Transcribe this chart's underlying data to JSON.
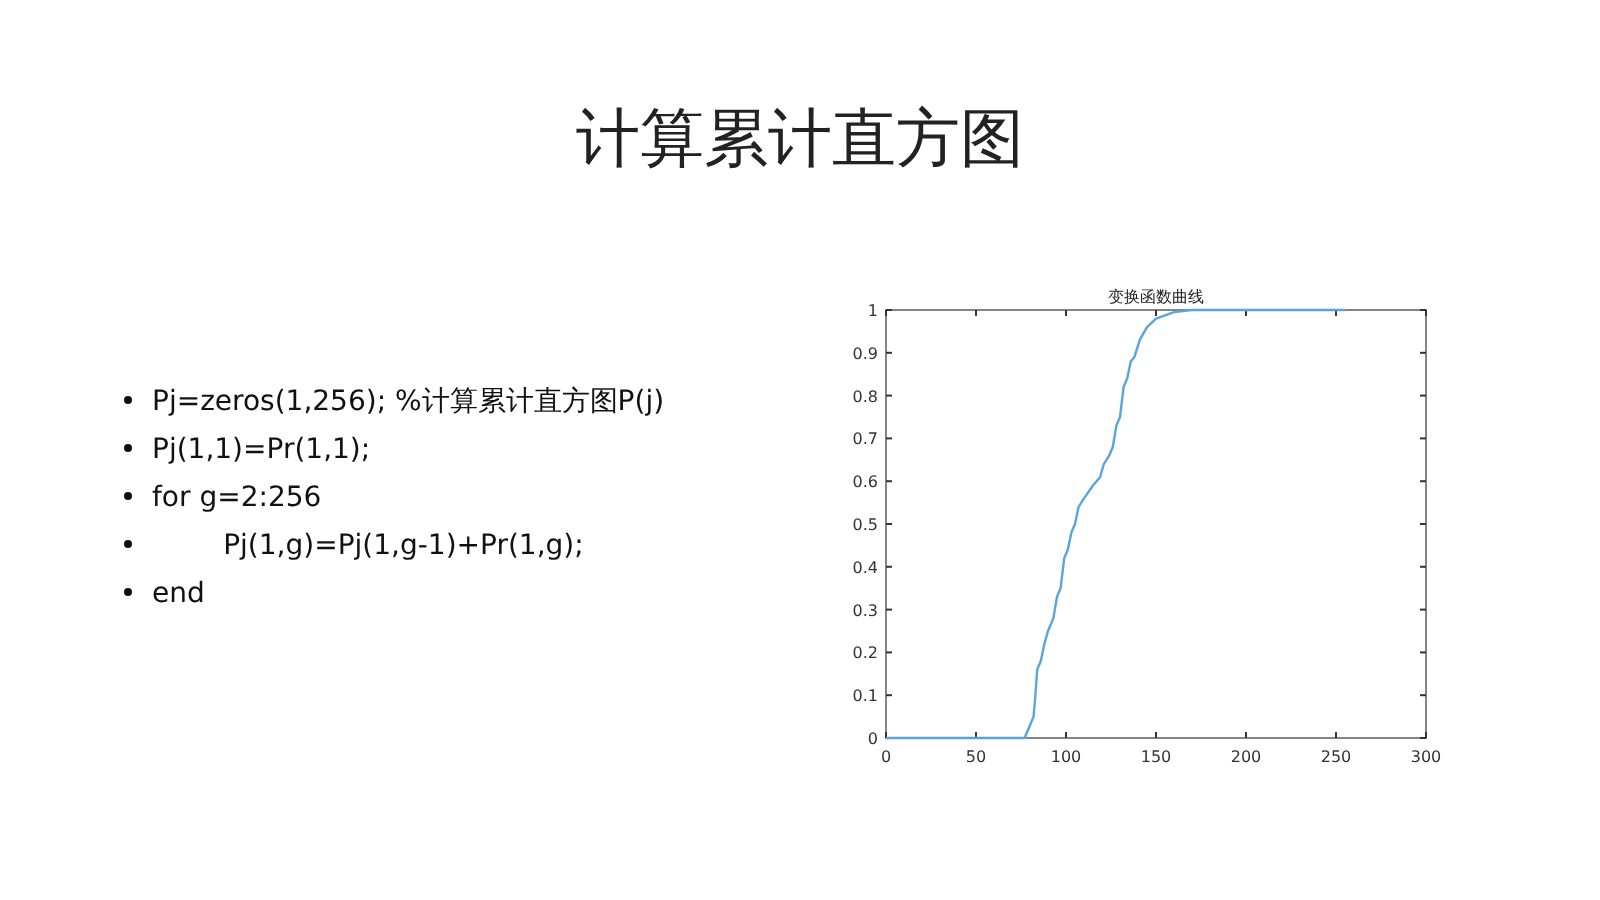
{
  "chart_data": {
    "type": "line",
    "title": "计算累计直方图",
    "subtitle": "变换函数曲线",
    "annotations": [
      "Pj=zeros(1,256); %计算累计直方图P(j)",
      "Pj(1,1)=Pr(1,1);",
      "for g=2:256",
      "        Pj(1,g)=Pj(1,g-1)+Pr(1,g);",
      "end"
    ],
    "series": [
      {
        "color": "#5aa5dc",
        "x": [
          0,
          77,
          80,
          82,
          83,
          84,
          86,
          88,
          90,
          93,
          95,
          97,
          99,
          101,
          103,
          105,
          107,
          110,
          115,
          119,
          121,
          124,
          126,
          128,
          130,
          132,
          134,
          136,
          138,
          141,
          145,
          150,
          160,
          170,
          255
        ],
        "values": [
          0,
          0,
          0.03,
          0.05,
          0.1,
          0.16,
          0.18,
          0.22,
          0.25,
          0.28,
          0.33,
          0.35,
          0.42,
          0.44,
          0.48,
          0.5,
          0.54,
          0.56,
          0.59,
          0.61,
          0.64,
          0.66,
          0.68,
          0.73,
          0.75,
          0.82,
          0.84,
          0.88,
          0.89,
          0.93,
          0.96,
          0.98,
          0.995,
          1,
          1
        ]
      }
    ],
    "xlim": [
      0,
      300
    ],
    "xticks": [
      0,
      50,
      100,
      150,
      200,
      250,
      300
    ],
    "ylim": [
      0,
      1
    ],
    "yticks": [
      0,
      0.1,
      0.2,
      0.3,
      0.4,
      0.5,
      0.6,
      0.7,
      0.8,
      0.9,
      1
    ],
    "grid": false,
    "marker": "none",
    "line_style": "solid"
  }
}
